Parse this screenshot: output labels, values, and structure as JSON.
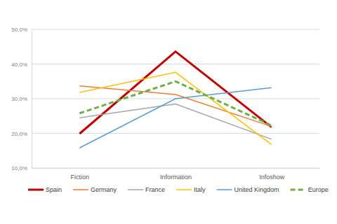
{
  "chart_data": {
    "type": "line",
    "categories": [
      "Fiction",
      "Information",
      "Infoshow"
    ],
    "series": [
      {
        "name": "Spain",
        "color": "#c00000",
        "line_style": "solid",
        "values": [
          19.9,
          43.6,
          21.8
        ]
      },
      {
        "name": "Germany",
        "color": "#ed7d31",
        "line_style": "solid",
        "values": [
          33.7,
          31.2,
          22.0
        ]
      },
      {
        "name": "France",
        "color": "#a5a5a5",
        "line_style": "solid",
        "values": [
          24.5,
          28.5,
          18.3
        ]
      },
      {
        "name": "Italy",
        "color": "#ffc000",
        "line_style": "solid",
        "values": [
          31.8,
          37.6,
          16.8
        ]
      },
      {
        "name": "United Kingdom",
        "color": "#5b9bd5",
        "line_style": "solid",
        "values": [
          15.8,
          30.0,
          33.2
        ]
      },
      {
        "name": "Europe",
        "color": "#70ad47",
        "line_style": "dashed",
        "values": [
          25.8,
          35.0,
          22.3
        ]
      }
    ],
    "ylim": [
      10,
      50
    ],
    "yticks": [
      {
        "value": 10,
        "label": "10,0%"
      },
      {
        "value": 20,
        "label": "20,0%"
      },
      {
        "value": 30,
        "label": "30,0%"
      },
      {
        "value": 40,
        "label": "40,0%"
      },
      {
        "value": 50,
        "label": "50,0%"
      }
    ],
    "grid": true,
    "legend": "bottom",
    "marker": "none"
  }
}
